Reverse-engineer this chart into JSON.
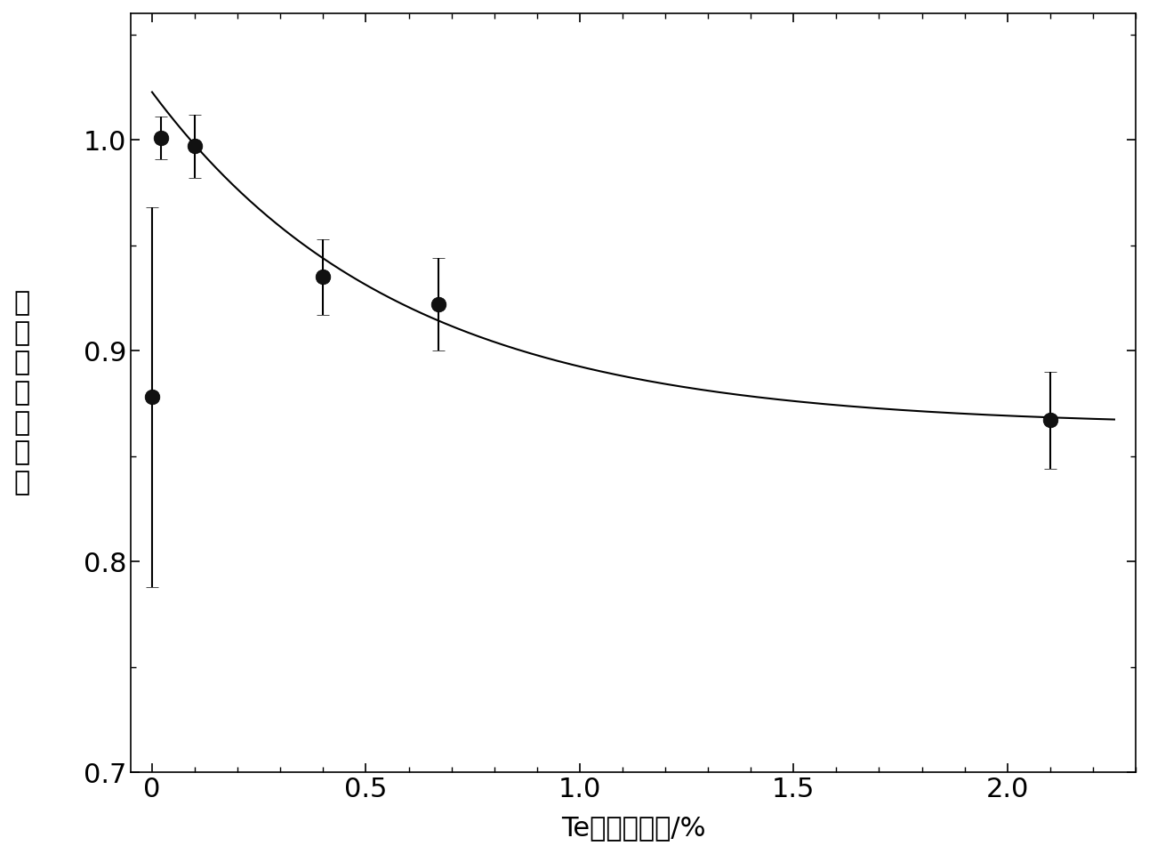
{
  "x_data": [
    0.0,
    0.02,
    0.1,
    0.4,
    0.67,
    2.1
  ],
  "y_data": [
    0.878,
    1.001,
    0.997,
    0.935,
    0.922,
    0.867
  ],
  "y_err_lo": [
    0.09,
    0.01,
    0.015,
    0.018,
    0.022,
    0.023
  ],
  "y_err_hi": [
    0.09,
    0.01,
    0.015,
    0.018,
    0.022,
    0.023
  ],
  "xlabel": "Te的掺杂比例/%",
  "ylabel": "输出归一化能量",
  "xlim": [
    -0.05,
    2.3
  ],
  "ylim": [
    0.7,
    1.06
  ],
  "xticks": [
    0.0,
    0.5,
    1.0,
    1.5,
    2.0
  ],
  "yticks_major": [
    0.7,
    0.8,
    0.9,
    1.0
  ],
  "yticks_minor": [
    0.7,
    0.75,
    0.8,
    0.85,
    0.9,
    0.95,
    1.0,
    1.05
  ],
  "background_color": "#ffffff",
  "line_color": "#000000",
  "marker_color": "#111111",
  "marker_size": 12,
  "line_width": 1.5,
  "xlabel_fontsize": 22,
  "ylabel_fontsize": 22,
  "tick_fontsize": 22
}
